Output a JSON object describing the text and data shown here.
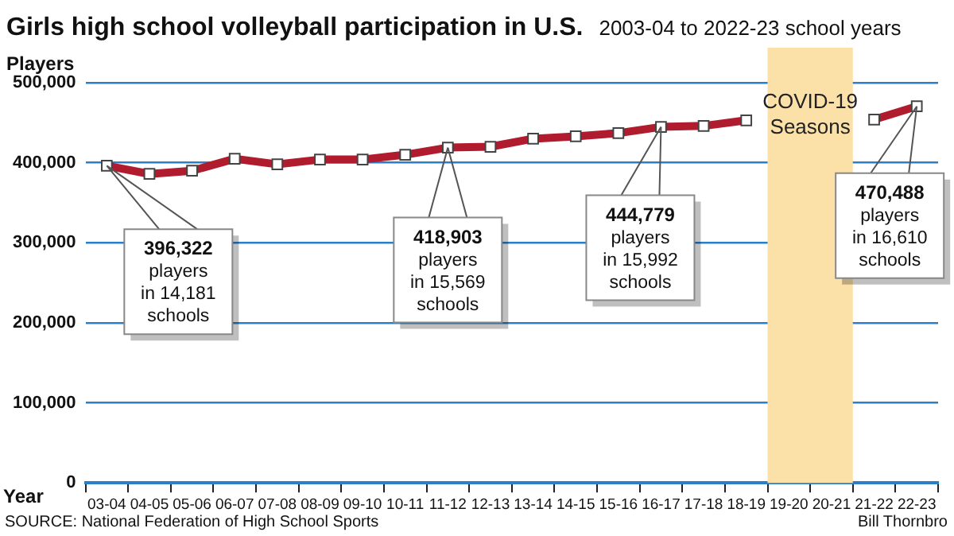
{
  "chart_data": {
    "type": "line",
    "title": "Girls high school volleyball participation in U.S.",
    "subtitle": "2003-04 to 2022-23 school years",
    "ylabel": "Players",
    "xlabel": "Year",
    "categories": [
      "03-04",
      "04-05",
      "05-06",
      "06-07",
      "07-08",
      "08-09",
      "09-10",
      "10-11",
      "11-12",
      "12-13",
      "13-14",
      "14-15",
      "15-16",
      "16-17",
      "17-18",
      "18-19",
      "19-20",
      "20-21",
      "21-22",
      "22-23"
    ],
    "series": [
      {
        "color": "#b01c2e",
        "values": [
          396322,
          386000,
          390000,
          405000,
          398000,
          404000,
          404000,
          410000,
          418903,
          420000,
          430000,
          433000,
          437000,
          444779,
          446000,
          453000,
          null,
          null,
          454000,
          470488
        ]
      }
    ],
    "ylim": [
      0,
      500000
    ],
    "yticks": [
      {
        "value": 0,
        "label": "0"
      },
      {
        "value": 100000,
        "label": "100,000"
      },
      {
        "value": 200000,
        "label": "200,000"
      },
      {
        "value": 300000,
        "label": "300,000"
      },
      {
        "value": 400000,
        "label": "400,000"
      },
      {
        "value": 500000,
        "label": "500,000"
      }
    ],
    "grid": "y",
    "legend": false,
    "marker": "square",
    "line_style": "solid",
    "bands": [
      {
        "axis": "x",
        "from": "19-20",
        "to": "20-21",
        "label": "COVID-19 Seasons",
        "color": "#fbe0a8"
      }
    ],
    "annotations": [
      {
        "text": "396,322\nplayers\nin 14,181\nschools",
        "x": "03-04",
        "y": 396322
      },
      {
        "text": "418,903\nplayers\nin 15,569\nschools",
        "x": "11-12",
        "y": 418903
      },
      {
        "text": "444,779\nplayers\nin 15,992\nschools",
        "x": "16-17",
        "y": 444779
      },
      {
        "text": "470,488\nplayers\nin 16,610\nschools",
        "x": "22-23",
        "y": 470488
      },
      "SOURCE: National Federation of High School Sports",
      "Bill Thornbro"
    ]
  }
}
